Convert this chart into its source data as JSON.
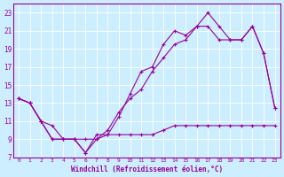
{
  "xlabel": "Windchill (Refroidissement éolien,°C)",
  "bg_color": "#cceeff",
  "grid_color": "#b0ddf0",
  "line_color": "#990099",
  "xlim": [
    -0.5,
    23.5
  ],
  "ylim": [
    7,
    24
  ],
  "xticks": [
    0,
    1,
    2,
    3,
    4,
    5,
    6,
    7,
    8,
    9,
    10,
    11,
    12,
    13,
    14,
    15,
    16,
    17,
    18,
    19,
    20,
    21,
    22,
    23
  ],
  "yticks": [
    7,
    9,
    11,
    13,
    15,
    17,
    19,
    21,
    23
  ],
  "line1_x": [
    0,
    1,
    2,
    3,
    4,
    5,
    6,
    7,
    8,
    9,
    10,
    11,
    12,
    13,
    14,
    15,
    16,
    17,
    18,
    19,
    20,
    21,
    22,
    23
  ],
  "line1_y": [
    13.5,
    13.0,
    11.0,
    9.0,
    9.0,
    9.0,
    7.5,
    9.5,
    9.5,
    11.5,
    14.0,
    16.5,
    17.0,
    19.5,
    21.0,
    20.5,
    21.5,
    23.0,
    21.5,
    20.0,
    20.0,
    21.5,
    18.5,
    12.5
  ],
  "line2_x": [
    0,
    1,
    2,
    3,
    4,
    5,
    6,
    7,
    8,
    9,
    10,
    11,
    12,
    13,
    14,
    15,
    16,
    17,
    18,
    19,
    20,
    21,
    22,
    23
  ],
  "line2_y": [
    13.5,
    13.0,
    11.0,
    10.5,
    9.0,
    9.0,
    9.0,
    9.0,
    10.0,
    12.0,
    13.5,
    14.5,
    16.5,
    18.0,
    19.5,
    20.0,
    21.5,
    21.5,
    20.0,
    20.0,
    20.0,
    21.5,
    18.5,
    12.5
  ],
  "line3_x": [
    0,
    1,
    2,
    3,
    4,
    5,
    6,
    7,
    8,
    9,
    10,
    11,
    12,
    13,
    14,
    15,
    16,
    17,
    18,
    19,
    20,
    21,
    22,
    23
  ],
  "line3_y": [
    13.5,
    13.0,
    11.0,
    9.0,
    9.0,
    9.0,
    7.5,
    9.0,
    9.5,
    9.5,
    9.5,
    9.5,
    9.5,
    10.0,
    10.5,
    10.5,
    10.5,
    10.5,
    10.5,
    10.5,
    10.5,
    10.5,
    10.5,
    10.5
  ]
}
